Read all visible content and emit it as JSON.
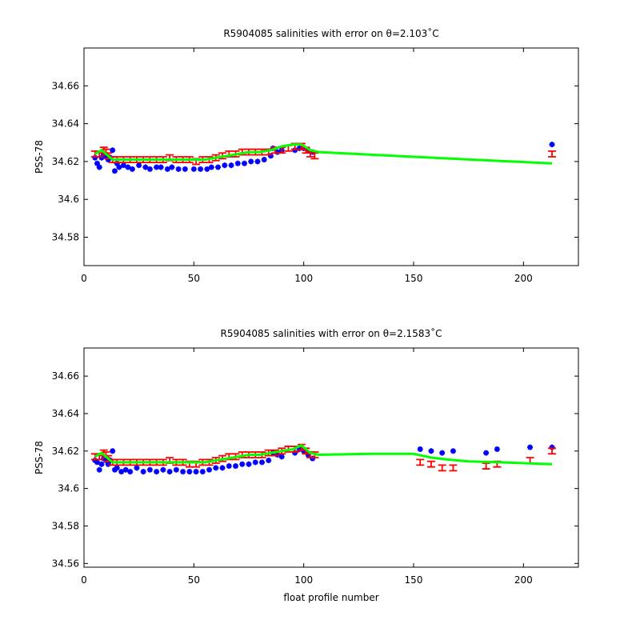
{
  "chart_data": [
    {
      "type": "scatter",
      "title": "R5904085 salinities with error on θ=2.103˚C",
      "xlabel": "",
      "ylabel": "PSS-78",
      "xlim": [
        0,
        225
      ],
      "ylim": [
        34.565,
        34.68
      ],
      "xticks": [
        0,
        50,
        100,
        150,
        200
      ],
      "xtick_labels": [
        "0",
        "50",
        "100",
        "150",
        "200"
      ],
      "yticks": [
        34.58,
        34.6,
        34.62,
        34.64,
        34.66
      ],
      "ytick_labels": [
        "34.58",
        "34.6",
        "34.62",
        "34.64",
        "34.66"
      ],
      "grid": false,
      "colors": {
        "measured": "#0000ff",
        "error": "#ff0000",
        "calibrated": "#00ff00"
      },
      "series": [
        {
          "key": "measured",
          "marker": "star",
          "points": [
            [
              5,
              34.622
            ],
            [
              6,
              34.619
            ],
            [
              7,
              34.617
            ],
            [
              8,
              34.622
            ],
            [
              9,
              34.624
            ],
            [
              10,
              34.623
            ],
            [
              11,
              34.621
            ],
            [
              12,
              34.622
            ],
            [
              13,
              34.626
            ],
            [
              14,
              34.615
            ],
            [
              15,
              34.619
            ],
            [
              16,
              34.617
            ],
            [
              18,
              34.618
            ],
            [
              20,
              34.617
            ],
            [
              22,
              34.616
            ],
            [
              25,
              34.618
            ],
            [
              28,
              34.617
            ],
            [
              30,
              34.616
            ],
            [
              33,
              34.617
            ],
            [
              35,
              34.617
            ],
            [
              38,
              34.616
            ],
            [
              40,
              34.617
            ],
            [
              43,
              34.616
            ],
            [
              46,
              34.616
            ],
            [
              50,
              34.616
            ],
            [
              53,
              34.616
            ],
            [
              56,
              34.616
            ],
            [
              58,
              34.617
            ],
            [
              61,
              34.617
            ],
            [
              64,
              34.618
            ],
            [
              67,
              34.618
            ],
            [
              70,
              34.619
            ],
            [
              73,
              34.619
            ],
            [
              76,
              34.62
            ],
            [
              79,
              34.62
            ],
            [
              82,
              34.621
            ],
            [
              85,
              34.623
            ],
            [
              86,
              34.627
            ],
            [
              88,
              34.625
            ],
            [
              90,
              34.626
            ],
            [
              96,
              34.626
            ],
            [
              98,
              34.627
            ],
            [
              100,
              34.627
            ],
            [
              102,
              34.626
            ],
            [
              104,
              34.625
            ],
            [
              213,
              34.629
            ]
          ]
        },
        {
          "key": "error",
          "marker": "errorbar",
          "points": [
            [
              5,
              34.624,
              0.0015
            ],
            [
              7,
              34.624,
              0.0015
            ],
            [
              9,
              34.626,
              0.0015
            ],
            [
              10,
              34.625,
              0.0015
            ],
            [
              11,
              34.623,
              0.0015
            ],
            [
              13,
              34.621,
              0.0015
            ],
            [
              15,
              34.621,
              0.0015
            ],
            [
              18,
              34.621,
              0.0015
            ],
            [
              21,
              34.621,
              0.0015
            ],
            [
              24,
              34.621,
              0.0015
            ],
            [
              27,
              34.621,
              0.0015
            ],
            [
              30,
              34.621,
              0.0015
            ],
            [
              33,
              34.621,
              0.0015
            ],
            [
              36,
              34.621,
              0.0015
            ],
            [
              39,
              34.622,
              0.0015
            ],
            [
              42,
              34.621,
              0.0015
            ],
            [
              45,
              34.621,
              0.0015
            ],
            [
              48,
              34.621,
              0.0015
            ],
            [
              51,
              34.62,
              0.0015
            ],
            [
              54,
              34.621,
              0.0015
            ],
            [
              57,
              34.621,
              0.0015
            ],
            [
              60,
              34.622,
              0.0015
            ],
            [
              63,
              34.623,
              0.0015
            ],
            [
              66,
              34.624,
              0.0015
            ],
            [
              69,
              34.624,
              0.0015
            ],
            [
              72,
              34.625,
              0.0015
            ],
            [
              75,
              34.625,
              0.0015
            ],
            [
              78,
              34.625,
              0.0015
            ],
            [
              81,
              34.625,
              0.0015
            ],
            [
              84,
              34.625,
              0.0015
            ],
            [
              87,
              34.626,
              0.0015
            ],
            [
              90,
              34.626,
              0.0015
            ],
            [
              93,
              34.627,
              0.0015
            ],
            [
              96,
              34.628,
              0.0015
            ],
            [
              99,
              34.628,
              0.0015
            ],
            [
              101,
              34.626,
              0.0015
            ],
            [
              103,
              34.624,
              0.0015
            ],
            [
              105,
              34.623,
              0.0015
            ],
            [
              213,
              34.624,
              0.0015
            ]
          ]
        },
        {
          "key": "calibrated",
          "marker": "line",
          "points": [
            [
              5,
              34.624
            ],
            [
              8,
              34.626
            ],
            [
              10,
              34.624
            ],
            [
              13,
              34.621
            ],
            [
              20,
              34.621
            ],
            [
              30,
              34.621
            ],
            [
              40,
              34.621
            ],
            [
              50,
              34.621
            ],
            [
              55,
              34.621
            ],
            [
              60,
              34.622
            ],
            [
              65,
              34.623
            ],
            [
              70,
              34.624
            ],
            [
              75,
              34.625
            ],
            [
              80,
              34.625
            ],
            [
              85,
              34.626
            ],
            [
              90,
              34.628
            ],
            [
              95,
              34.629
            ],
            [
              99,
              34.629
            ],
            [
              103,
              34.626
            ],
            [
              107,
              34.625
            ],
            [
              150,
              34.6225
            ],
            [
              213,
              34.619
            ]
          ]
        }
      ]
    },
    {
      "type": "scatter",
      "title": "R5904085 salinities with error on θ=2.1583˚C",
      "xlabel": "float profile number",
      "ylabel": "PSS-78",
      "xlim": [
        0,
        225
      ],
      "ylim": [
        34.558,
        34.675
      ],
      "xticks": [
        0,
        50,
        100,
        150,
        200
      ],
      "xtick_labels": [
        "0",
        "50",
        "100",
        "150",
        "200"
      ],
      "yticks": [
        34.56,
        34.58,
        34.6,
        34.62,
        34.64,
        34.66
      ],
      "ytick_labels": [
        "34.56",
        "34.58",
        "34.6",
        "34.62",
        "34.64",
        "34.66"
      ],
      "grid": false,
      "colors": {
        "measured": "#0000ff",
        "error": "#ff0000",
        "calibrated": "#00ff00"
      },
      "series": [
        {
          "key": "measured",
          "marker": "star",
          "points": [
            [
              5,
              34.615
            ],
            [
              6,
              34.614
            ],
            [
              7,
              34.61
            ],
            [
              8,
              34.613
            ],
            [
              9,
              34.616
            ],
            [
              10,
              34.615
            ],
            [
              11,
              34.613
            ],
            [
              12,
              34.615
            ],
            [
              13,
              34.62
            ],
            [
              14,
              34.61
            ],
            [
              15,
              34.611
            ],
            [
              17,
              34.609
            ],
            [
              19,
              34.61
            ],
            [
              21,
              34.609
            ],
            [
              24,
              34.611
            ],
            [
              27,
              34.609
            ],
            [
              30,
              34.61
            ],
            [
              33,
              34.609
            ],
            [
              36,
              34.61
            ],
            [
              39,
              34.609
            ],
            [
              42,
              34.61
            ],
            [
              45,
              34.609
            ],
            [
              48,
              34.609
            ],
            [
              51,
              34.609
            ],
            [
              54,
              34.609
            ],
            [
              57,
              34.61
            ],
            [
              60,
              34.611
            ],
            [
              63,
              34.611
            ],
            [
              66,
              34.612
            ],
            [
              69,
              34.612
            ],
            [
              72,
              34.613
            ],
            [
              75,
              34.613
            ],
            [
              78,
              34.614
            ],
            [
              81,
              34.614
            ],
            [
              84,
              34.615
            ],
            [
              86,
              34.619
            ],
            [
              88,
              34.618
            ],
            [
              90,
              34.617
            ],
            [
              96,
              34.619
            ],
            [
              98,
              34.621
            ],
            [
              100,
              34.62
            ],
            [
              102,
              34.618
            ],
            [
              104,
              34.616
            ],
            [
              153,
              34.621
            ],
            [
              158,
              34.62
            ],
            [
              163,
              34.619
            ],
            [
              168,
              34.62
            ],
            [
              183,
              34.619
            ],
            [
              188,
              34.621
            ],
            [
              203,
              34.622
            ],
            [
              213,
              34.622
            ]
          ]
        },
        {
          "key": "error",
          "marker": "errorbar",
          "points": [
            [
              5,
              34.617,
              0.0015
            ],
            [
              7,
              34.617,
              0.0015
            ],
            [
              9,
              34.619,
              0.0015
            ],
            [
              10,
              34.618,
              0.0015
            ],
            [
              11,
              34.616,
              0.0015
            ],
            [
              13,
              34.614,
              0.0015
            ],
            [
              15,
              34.614,
              0.0015
            ],
            [
              18,
              34.614,
              0.0015
            ],
            [
              21,
              34.614,
              0.0015
            ],
            [
              24,
              34.614,
              0.0015
            ],
            [
              27,
              34.614,
              0.0015
            ],
            [
              30,
              34.614,
              0.0015
            ],
            [
              33,
              34.614,
              0.0015
            ],
            [
              36,
              34.614,
              0.0015
            ],
            [
              39,
              34.615,
              0.0015
            ],
            [
              42,
              34.614,
              0.0015
            ],
            [
              45,
              34.614,
              0.0015
            ],
            [
              48,
              34.613,
              0.0015
            ],
            [
              51,
              34.613,
              0.0015
            ],
            [
              54,
              34.614,
              0.0015
            ],
            [
              57,
              34.614,
              0.0015
            ],
            [
              60,
              34.615,
              0.0015
            ],
            [
              63,
              34.616,
              0.0015
            ],
            [
              66,
              34.617,
              0.0015
            ],
            [
              69,
              34.617,
              0.0015
            ],
            [
              72,
              34.618,
              0.0015
            ],
            [
              75,
              34.618,
              0.0015
            ],
            [
              78,
              34.618,
              0.0015
            ],
            [
              81,
              34.618,
              0.0015
            ],
            [
              84,
              34.619,
              0.0015
            ],
            [
              87,
              34.619,
              0.0015
            ],
            [
              90,
              34.62,
              0.0015
            ],
            [
              93,
              34.621,
              0.0015
            ],
            [
              96,
              34.621,
              0.0015
            ],
            [
              99,
              34.622,
              0.0015
            ],
            [
              101,
              34.62,
              0.0015
            ],
            [
              103,
              34.618,
              0.0015
            ],
            [
              105,
              34.618,
              0.0015
            ],
            [
              153,
              34.614,
              0.0015
            ],
            [
              158,
              34.613,
              0.0015
            ],
            [
              163,
              34.611,
              0.0015
            ],
            [
              168,
              34.611,
              0.0015
            ],
            [
              183,
              34.612,
              0.0015
            ],
            [
              188,
              34.613,
              0.0015
            ],
            [
              203,
              34.615,
              0.0015
            ],
            [
              213,
              34.62,
              0.0015
            ]
          ]
        },
        {
          "key": "calibrated",
          "marker": "line",
          "points": [
            [
              5,
              34.617
            ],
            [
              8,
              34.619
            ],
            [
              10,
              34.617
            ],
            [
              13,
              34.614
            ],
            [
              20,
              34.614
            ],
            [
              30,
              34.614
            ],
            [
              40,
              34.614
            ],
            [
              50,
              34.614
            ],
            [
              55,
              34.614
            ],
            [
              60,
              34.615
            ],
            [
              65,
              34.616
            ],
            [
              70,
              34.617
            ],
            [
              75,
              34.618
            ],
            [
              80,
              34.618
            ],
            [
              85,
              34.619
            ],
            [
              90,
              34.62
            ],
            [
              95,
              34.621
            ],
            [
              99,
              34.623
            ],
            [
              103,
              34.619
            ],
            [
              107,
              34.618
            ],
            [
              130,
              34.6185
            ],
            [
              150,
              34.6185
            ],
            [
              158,
              34.6165
            ],
            [
              165,
              34.6155
            ],
            [
              175,
              34.6145
            ],
            [
              190,
              34.614
            ],
            [
              213,
              34.613
            ]
          ]
        }
      ]
    }
  ]
}
